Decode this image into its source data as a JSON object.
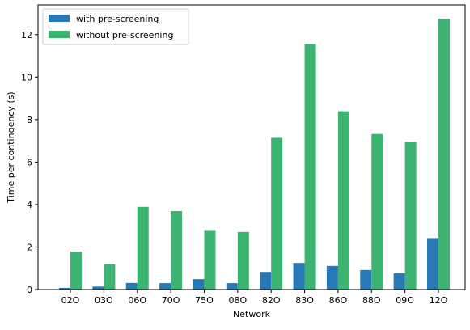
{
  "chart_data": {
    "type": "bar",
    "xlabel": "Network",
    "ylabel": "Time per contingency (s)",
    "categories": [
      "02O",
      "03O",
      "06O",
      "70O",
      "75O",
      "08O",
      "82O",
      "83O",
      "86O",
      "88O",
      "09O",
      "12O"
    ],
    "series": [
      {
        "name": "with pre-screening",
        "color": "#2878b5",
        "values": [
          0.08,
          0.14,
          0.31,
          0.3,
          0.49,
          0.3,
          0.83,
          1.25,
          1.11,
          0.92,
          0.76,
          2.42
        ]
      },
      {
        "name": "without pre-screening",
        "color": "#3cb371",
        "values": [
          1.79,
          1.19,
          3.89,
          3.69,
          2.8,
          2.71,
          7.14,
          11.55,
          8.39,
          7.32,
          6.95,
          12.75
        ]
      }
    ],
    "ylim": [
      0,
      13.4
    ],
    "yticks": [
      "0",
      "2",
      "4",
      "6",
      "8",
      "10",
      "12"
    ],
    "ytick_values": [
      0,
      2,
      4,
      6,
      8,
      10,
      12
    ],
    "grid": false,
    "legend_position": "top-left"
  }
}
